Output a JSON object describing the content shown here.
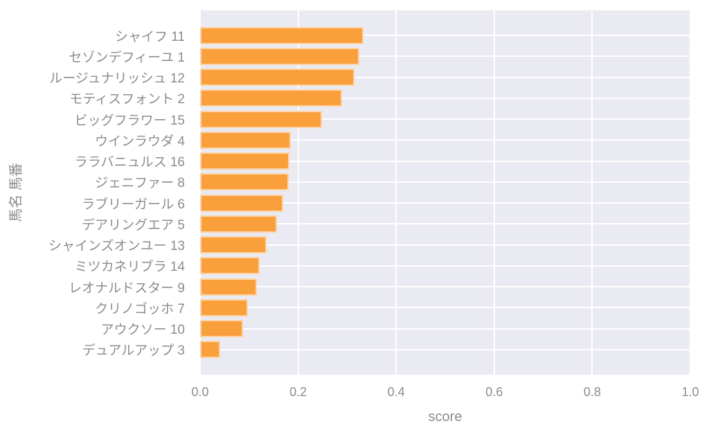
{
  "chart_data": {
    "type": "bar",
    "orientation": "horizontal",
    "title": "",
    "xlabel": "score",
    "ylabel": "馬名 馬番",
    "xlim": [
      0.0,
      1.0
    ],
    "x_ticks": [
      0.0,
      0.2,
      0.4,
      0.6,
      0.8,
      1.0
    ],
    "x_tick_labels": [
      "0.0",
      "0.2",
      "0.4",
      "0.6",
      "0.8",
      "1.0"
    ],
    "grid": true,
    "legend": false,
    "categories": [
      "シャイフ 11",
      "セゾンデフィーユ 1",
      "ルージュナリッシュ 12",
      "モティスフォント 2",
      "ビッグフラワー 15",
      "ウインラウダ 4",
      "ララバニュルス 16",
      "ジェニファー 8",
      "ラブリーガール 6",
      "デアリングエア 5",
      "シャインズオンユー 13",
      "ミツカネリブラ 14",
      "レオナルドスター 9",
      "クリノゴッホ 7",
      "アウクソー 10",
      "デュアルアップ 3"
    ],
    "values": [
      0.333,
      0.325,
      0.315,
      0.29,
      0.248,
      0.185,
      0.182,
      0.181,
      0.17,
      0.157,
      0.135,
      0.121,
      0.116,
      0.097,
      0.088,
      0.041
    ],
    "colors": {
      "bar": "#F9A03C",
      "plot_background": "#EAEAF2",
      "gridline": "#FFFFFF",
      "tick_text": "#8C8C8C",
      "figure_background": "#FFFFFF"
    }
  }
}
